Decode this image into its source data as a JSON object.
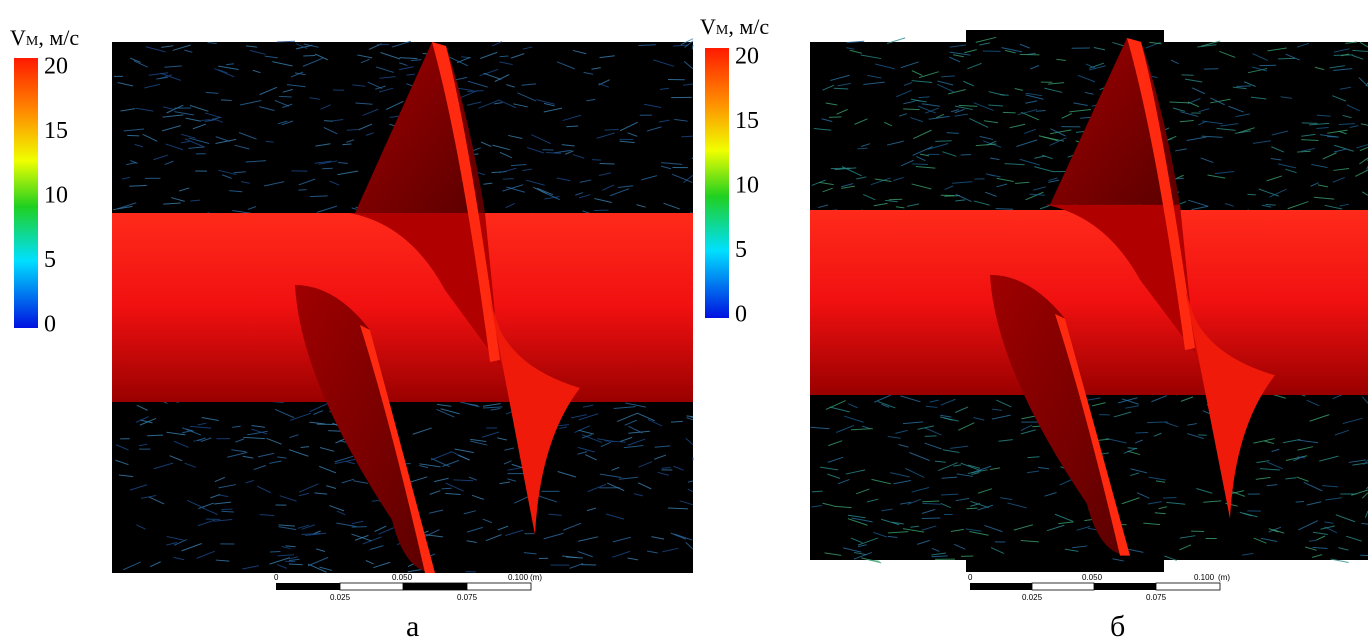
{
  "panels": [
    {
      "label": "а",
      "colorbar": {
        "title": "V",
        "title_sub": "M",
        "title_unit": ", м/с",
        "clim": [
          0,
          20
        ],
        "ticks": [
          20,
          15,
          10,
          5,
          0
        ]
      },
      "scale": {
        "top": [
          "0",
          "0.050",
          "0.100",
          "(m)"
        ],
        "bottom": [
          "0.025",
          "0.075"
        ]
      }
    },
    {
      "label": "б",
      "colorbar": {
        "title": "V",
        "title_sub": "M",
        "title_unit": ", м/с",
        "clim": [
          0,
          20
        ],
        "ticks": [
          20,
          15,
          10,
          5,
          0
        ]
      },
      "scale": {
        "top": [
          "0",
          "0.050",
          "0.100",
          "(m)"
        ],
        "bottom": [
          "0.025",
          "0.075"
        ]
      }
    }
  ]
}
